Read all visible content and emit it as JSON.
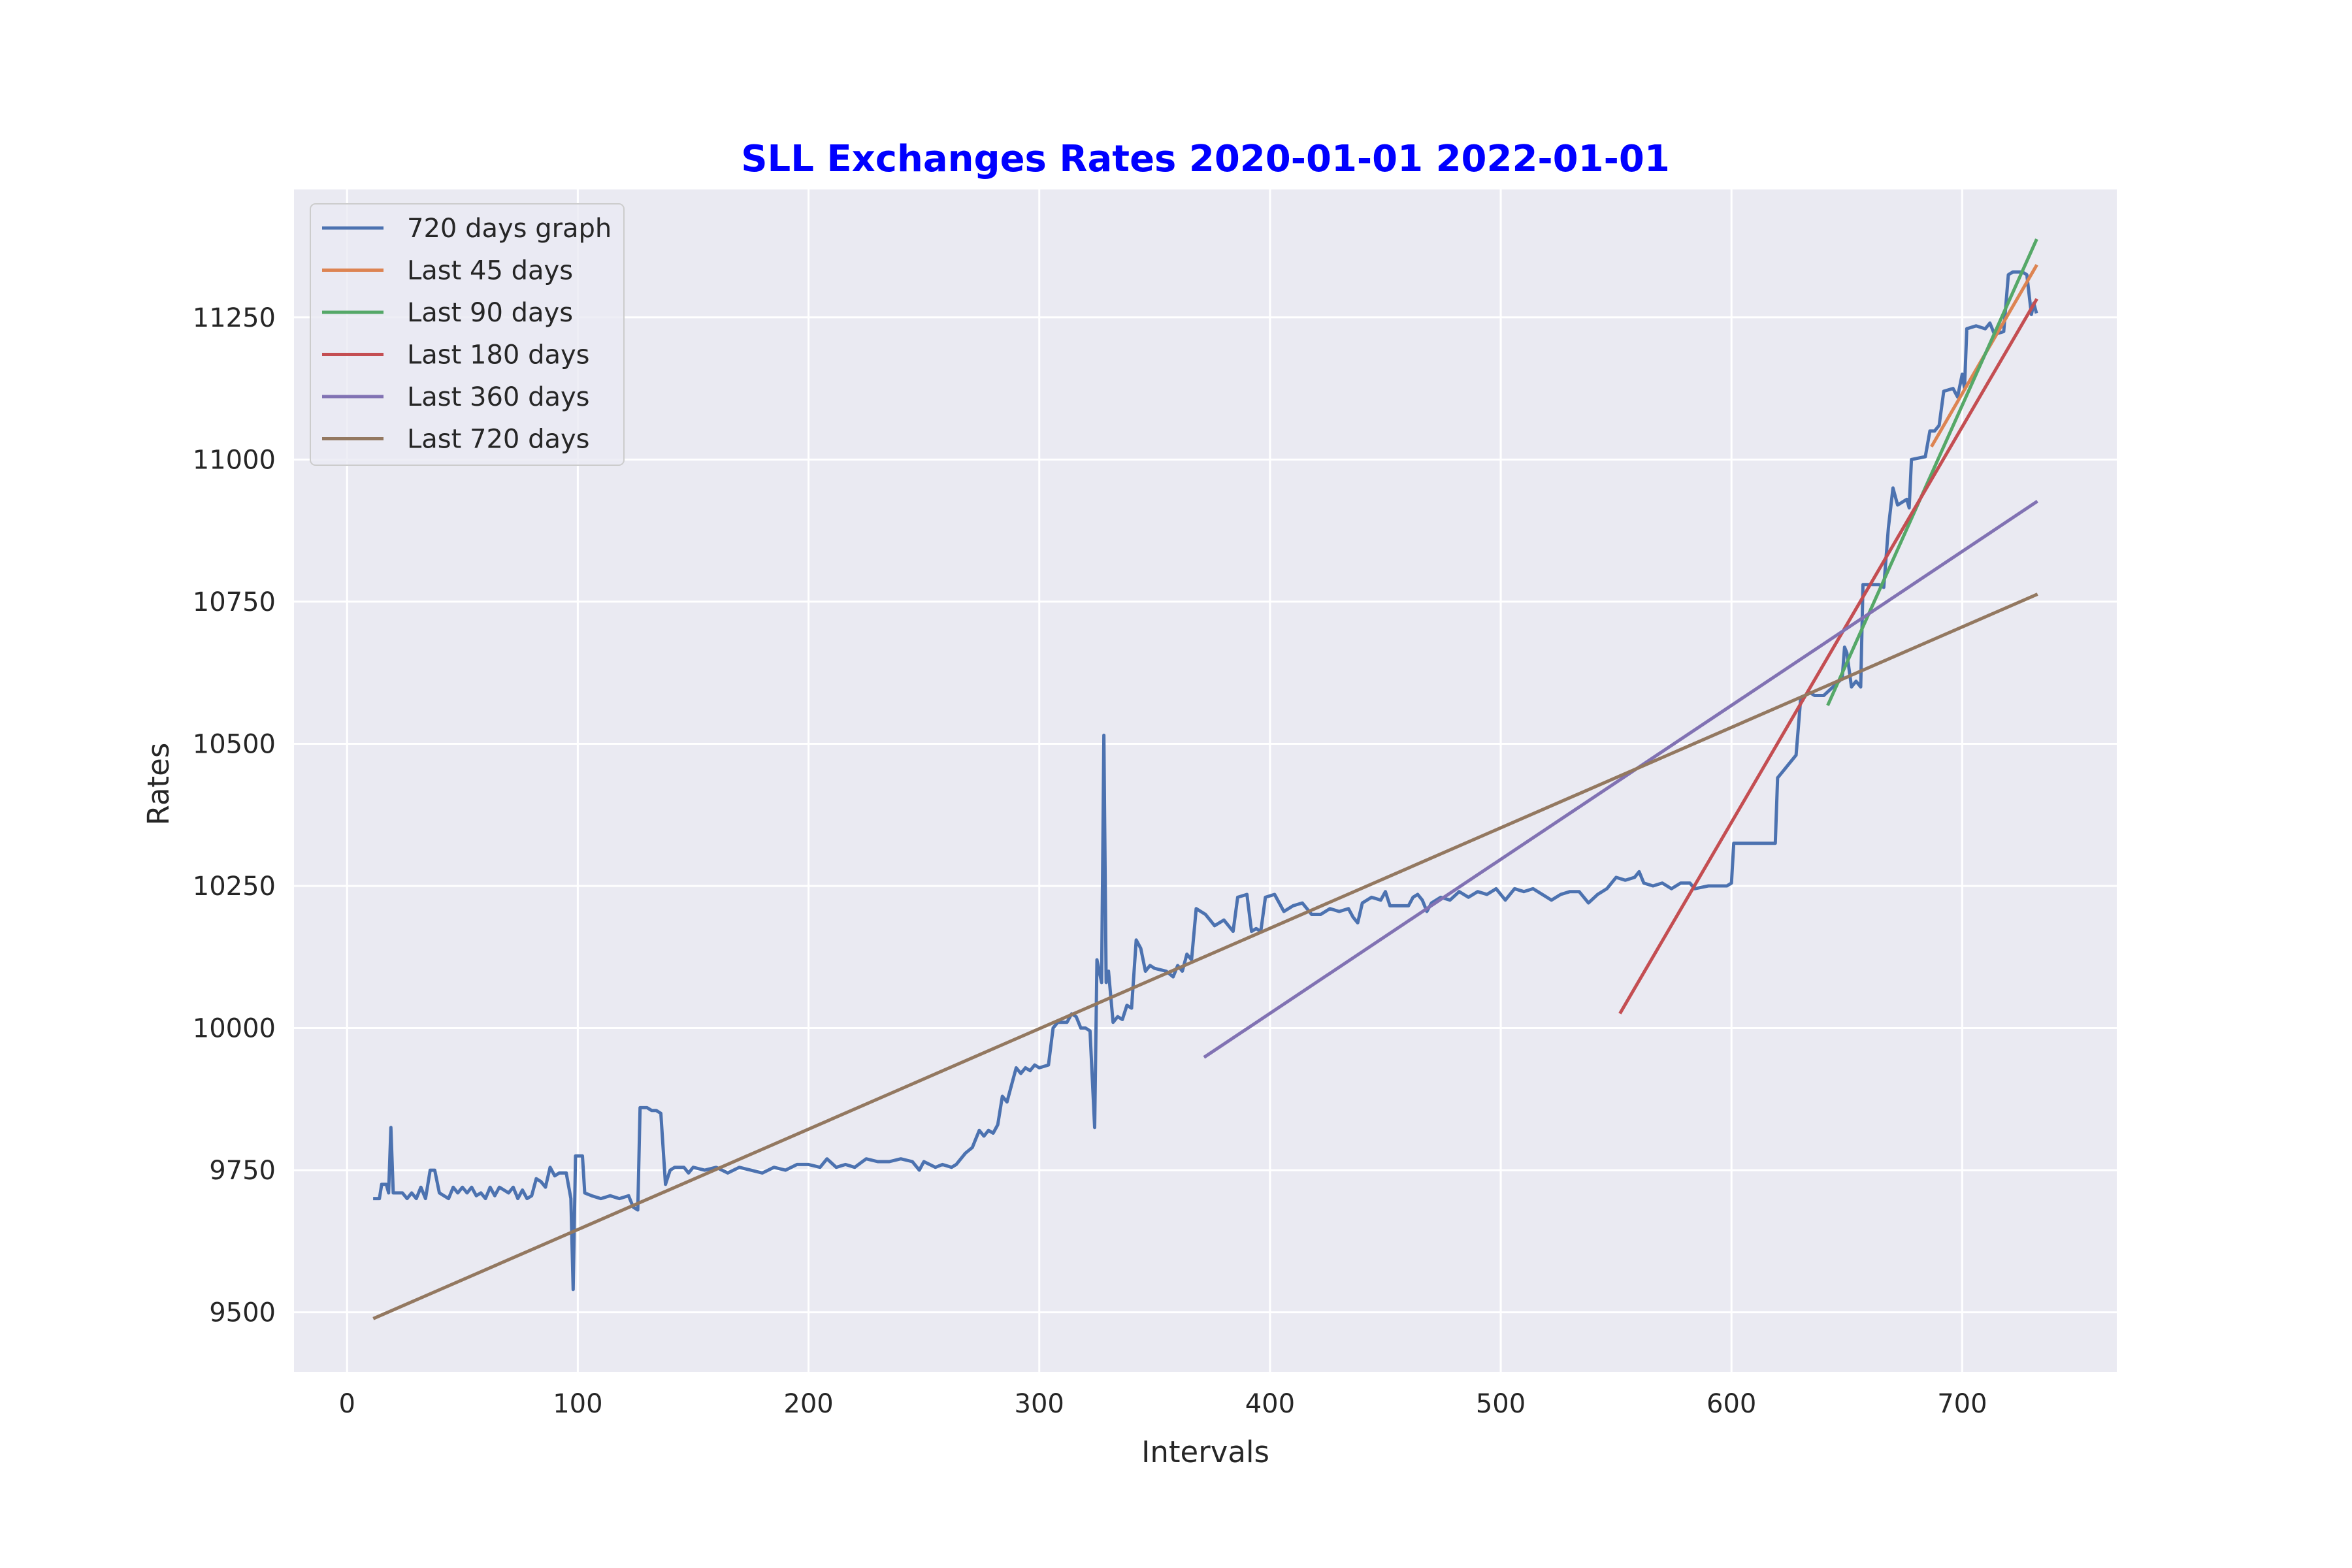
{
  "chart_data": {
    "type": "line",
    "title": "SLL Exchanges Rates 2020-01-01 2022-01-01",
    "xlabel": "Intervals",
    "ylabel": "Rates",
    "xlim": [
      -23,
      767
    ],
    "ylim": [
      9395,
      11475
    ],
    "xticks": [
      0,
      100,
      200,
      300,
      400,
      500,
      600,
      700
    ],
    "yticks": [
      9500,
      9750,
      10000,
      10250,
      10500,
      10750,
      11000,
      11250
    ],
    "grid": true,
    "legend_position": "top-left",
    "series": [
      {
        "name": "720 days graph",
        "color": "#4c72b0",
        "points": [
          [
            12,
            9700
          ],
          [
            14,
            9700
          ],
          [
            15,
            9725
          ],
          [
            17,
            9725
          ],
          [
            18,
            9710
          ],
          [
            19,
            9825
          ],
          [
            20,
            9710
          ],
          [
            24,
            9710
          ],
          [
            26,
            9700
          ],
          [
            28,
            9710
          ],
          [
            30,
            9700
          ],
          [
            32,
            9720
          ],
          [
            34,
            9700
          ],
          [
            36,
            9750
          ],
          [
            38,
            9750
          ],
          [
            40,
            9710
          ],
          [
            44,
            9700
          ],
          [
            46,
            9720
          ],
          [
            48,
            9710
          ],
          [
            50,
            9720
          ],
          [
            52,
            9710
          ],
          [
            54,
            9720
          ],
          [
            56,
            9705
          ],
          [
            58,
            9710
          ],
          [
            60,
            9700
          ],
          [
            62,
            9720
          ],
          [
            64,
            9705
          ],
          [
            66,
            9720
          ],
          [
            68,
            9715
          ],
          [
            70,
            9710
          ],
          [
            72,
            9720
          ],
          [
            74,
            9700
          ],
          [
            76,
            9715
          ],
          [
            78,
            9700
          ],
          [
            80,
            9705
          ],
          [
            82,
            9735
          ],
          [
            84,
            9730
          ],
          [
            86,
            9720
          ],
          [
            88,
            9755
          ],
          [
            90,
            9740
          ],
          [
            92,
            9745
          ],
          [
            95,
            9745
          ],
          [
            97,
            9700
          ],
          [
            98,
            9540
          ],
          [
            99,
            9775
          ],
          [
            102,
            9775
          ],
          [
            103,
            9710
          ],
          [
            106,
            9705
          ],
          [
            110,
            9700
          ],
          [
            114,
            9705
          ],
          [
            118,
            9700
          ],
          [
            122,
            9705
          ],
          [
            124,
            9685
          ],
          [
            126,
            9680
          ],
          [
            127,
            9860
          ],
          [
            130,
            9860
          ],
          [
            132,
            9855
          ],
          [
            134,
            9855
          ],
          [
            136,
            9850
          ],
          [
            138,
            9725
          ],
          [
            140,
            9750
          ],
          [
            142,
            9755
          ],
          [
            146,
            9755
          ],
          [
            148,
            9745
          ],
          [
            150,
            9755
          ],
          [
            155,
            9750
          ],
          [
            160,
            9755
          ],
          [
            165,
            9745
          ],
          [
            170,
            9755
          ],
          [
            175,
            9750
          ],
          [
            180,
            9745
          ],
          [
            185,
            9755
          ],
          [
            190,
            9750
          ],
          [
            195,
            9760
          ],
          [
            200,
            9760
          ],
          [
            205,
            9755
          ],
          [
            208,
            9770
          ],
          [
            212,
            9755
          ],
          [
            216,
            9760
          ],
          [
            220,
            9755
          ],
          [
            225,
            9770
          ],
          [
            230,
            9765
          ],
          [
            235,
            9765
          ],
          [
            240,
            9770
          ],
          [
            245,
            9765
          ],
          [
            248,
            9750
          ],
          [
            250,
            9765
          ],
          [
            255,
            9755
          ],
          [
            258,
            9760
          ],
          [
            262,
            9755
          ],
          [
            264,
            9760
          ],
          [
            268,
            9780
          ],
          [
            271,
            9790
          ],
          [
            272,
            9800
          ],
          [
            274,
            9820
          ],
          [
            276,
            9810
          ],
          [
            278,
            9820
          ],
          [
            280,
            9815
          ],
          [
            282,
            9830
          ],
          [
            284,
            9880
          ],
          [
            286,
            9870
          ],
          [
            288,
            9900
          ],
          [
            290,
            9930
          ],
          [
            292,
            9920
          ],
          [
            294,
            9930
          ],
          [
            296,
            9925
          ],
          [
            298,
            9935
          ],
          [
            300,
            9930
          ],
          [
            304,
            9935
          ],
          [
            306,
            10000
          ],
          [
            308,
            10010
          ],
          [
            312,
            10010
          ],
          [
            314,
            10025
          ],
          [
            316,
            10020
          ],
          [
            318,
            10000
          ],
          [
            320,
            10000
          ],
          [
            322,
            9995
          ],
          [
            324,
            9825
          ],
          [
            325,
            10120
          ],
          [
            327,
            10080
          ],
          [
            328,
            10515
          ],
          [
            329,
            10080
          ],
          [
            330,
            10100
          ],
          [
            332,
            10010
          ],
          [
            334,
            10020
          ],
          [
            336,
            10015
          ],
          [
            338,
            10040
          ],
          [
            340,
            10035
          ],
          [
            342,
            10155
          ],
          [
            344,
            10140
          ],
          [
            346,
            10100
          ],
          [
            348,
            10110
          ],
          [
            350,
            10105
          ],
          [
            355,
            10100
          ],
          [
            358,
            10090
          ],
          [
            360,
            10110
          ],
          [
            362,
            10100
          ],
          [
            364,
            10130
          ],
          [
            366,
            10120
          ],
          [
            368,
            10210
          ],
          [
            372,
            10200
          ],
          [
            374,
            10190
          ],
          [
            376,
            10180
          ],
          [
            380,
            10190
          ],
          [
            384,
            10170
          ],
          [
            386,
            10230
          ],
          [
            390,
            10235
          ],
          [
            392,
            10170
          ],
          [
            394,
            10175
          ],
          [
            396,
            10170
          ],
          [
            398,
            10230
          ],
          [
            402,
            10235
          ],
          [
            406,
            10205
          ],
          [
            410,
            10215
          ],
          [
            414,
            10220
          ],
          [
            418,
            10200
          ],
          [
            422,
            10200
          ],
          [
            426,
            10210
          ],
          [
            430,
            10205
          ],
          [
            434,
            10210
          ],
          [
            436,
            10195
          ],
          [
            438,
            10185
          ],
          [
            440,
            10220
          ],
          [
            444,
            10230
          ],
          [
            448,
            10225
          ],
          [
            450,
            10240
          ],
          [
            452,
            10215
          ],
          [
            456,
            10215
          ],
          [
            460,
            10215
          ],
          [
            462,
            10230
          ],
          [
            464,
            10235
          ],
          [
            466,
            10225
          ],
          [
            468,
            10205
          ],
          [
            470,
            10220
          ],
          [
            474,
            10230
          ],
          [
            478,
            10225
          ],
          [
            482,
            10240
          ],
          [
            486,
            10230
          ],
          [
            490,
            10240
          ],
          [
            494,
            10235
          ],
          [
            498,
            10245
          ],
          [
            502,
            10225
          ],
          [
            506,
            10245
          ],
          [
            510,
            10240
          ],
          [
            514,
            10245
          ],
          [
            518,
            10235
          ],
          [
            522,
            10225
          ],
          [
            526,
            10235
          ],
          [
            530,
            10240
          ],
          [
            534,
            10240
          ],
          [
            538,
            10220
          ],
          [
            542,
            10235
          ],
          [
            546,
            10245
          ],
          [
            550,
            10265
          ],
          [
            554,
            10260
          ],
          [
            558,
            10265
          ],
          [
            560,
            10275
          ],
          [
            562,
            10255
          ],
          [
            566,
            10250
          ],
          [
            570,
            10255
          ],
          [
            574,
            10245
          ],
          [
            578,
            10255
          ],
          [
            582,
            10255
          ],
          [
            584,
            10245
          ],
          [
            590,
            10250
          ],
          [
            598,
            10250
          ],
          [
            600,
            10255
          ],
          [
            601,
            10325
          ],
          [
            605,
            10325
          ],
          [
            612,
            10325
          ],
          [
            619,
            10325
          ],
          [
            620,
            10440
          ],
          [
            622,
            10450
          ],
          [
            626,
            10470
          ],
          [
            628,
            10480
          ],
          [
            630,
            10580
          ],
          [
            634,
            10590
          ],
          [
            636,
            10585
          ],
          [
            640,
            10585
          ],
          [
            644,
            10600
          ],
          [
            648,
            10615
          ],
          [
            649,
            10670
          ],
          [
            650,
            10660
          ],
          [
            652,
            10600
          ],
          [
            654,
            10610
          ],
          [
            656,
            10600
          ],
          [
            657,
            10780
          ],
          [
            660,
            10780
          ],
          [
            664,
            10780
          ],
          [
            666,
            10775
          ],
          [
            668,
            10880
          ],
          [
            670,
            10950
          ],
          [
            672,
            10920
          ],
          [
            676,
            10930
          ],
          [
            677,
            10915
          ],
          [
            678,
            11000
          ],
          [
            684,
            11005
          ],
          [
            686,
            11050
          ],
          [
            688,
            11050
          ],
          [
            690,
            11060
          ],
          [
            692,
            11120
          ],
          [
            696,
            11125
          ],
          [
            698,
            11110
          ],
          [
            700,
            11150
          ],
          [
            701,
            11125
          ],
          [
            702,
            11230
          ],
          [
            706,
            11235
          ],
          [
            710,
            11230
          ],
          [
            712,
            11240
          ],
          [
            714,
            11220
          ],
          [
            718,
            11225
          ],
          [
            720,
            11325
          ],
          [
            722,
            11330
          ],
          [
            726,
            11330
          ],
          [
            728,
            11325
          ],
          [
            730,
            11255
          ],
          [
            731,
            11275
          ],
          [
            732,
            11260
          ]
        ]
      },
      {
        "name": "Last 45 days",
        "color": "#dd8452",
        "points": [
          [
            687,
            11025
          ],
          [
            732,
            11340
          ]
        ]
      },
      {
        "name": "Last 90 days",
        "color": "#55a868",
        "points": [
          [
            642,
            10570
          ],
          [
            732,
            11385
          ]
        ]
      },
      {
        "name": "Last 180 days",
        "color": "#c44e52",
        "points": [
          [
            552,
            10028
          ],
          [
            732,
            11280
          ]
        ]
      },
      {
        "name": "Last 360 days",
        "color": "#8172b3",
        "points": [
          [
            372,
            9950
          ],
          [
            732,
            10925
          ]
        ]
      },
      {
        "name": "Last 720 days",
        "color": "#937860",
        "points": [
          [
            12,
            9490
          ],
          [
            732,
            10762
          ]
        ]
      }
    ]
  }
}
